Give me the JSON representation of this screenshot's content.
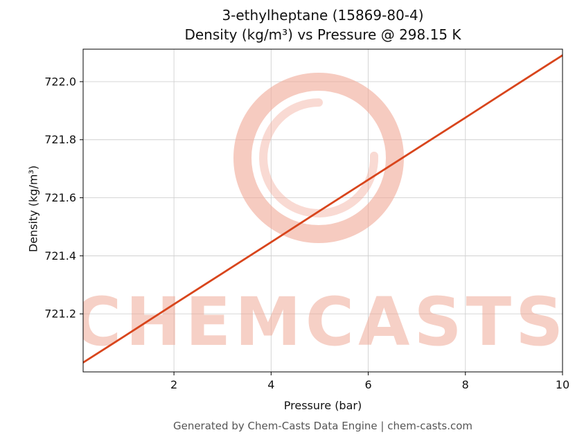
{
  "figure": {
    "title_line1": "3-ethylheptane (15869-80-4)",
    "title_line2": "Density (kg/m³) vs Pressure @ 298.15 K",
    "xlabel": "Pressure (bar)",
    "ylabel": "Density (kg/m³)",
    "footer": "Generated by Chem-Casts Data Engine | chem-casts.com",
    "watermark_text": "CHEMCASTS",
    "colors": {
      "line": "#d8451c",
      "watermark": "#f0a897",
      "grid": "#d0d0d0",
      "axis": "#000000",
      "tick_text": "#111111"
    }
  },
  "chart_data": {
    "type": "line",
    "title": "3-ethylheptane (15869-80-4) — Density (kg/m³) vs Pressure @ 298.15 K",
    "xlabel": "Pressure (bar)",
    "ylabel": "Density (kg/m³)",
    "x": [
      0.1,
      1,
      2,
      3,
      4,
      5,
      6,
      7,
      8,
      9,
      10
    ],
    "y": [
      721.029,
      721.125,
      721.233,
      721.34,
      721.447,
      721.555,
      721.662,
      721.769,
      721.876,
      721.984,
      722.091
    ],
    "xlim": [
      0.13,
      10
    ],
    "ylim": [
      721.0,
      722.112
    ],
    "xticks": [
      2,
      4,
      6,
      8,
      10
    ],
    "xtick_labels": [
      "2",
      "4",
      "6",
      "8",
      "10"
    ],
    "yticks": [
      721.2,
      721.4,
      721.6,
      721.8,
      722.0
    ],
    "ytick_labels": [
      "721.2",
      "721.4",
      "721.6",
      "721.8",
      "722.0"
    ],
    "grid": true,
    "legend": "none",
    "series_color": "#d8451c"
  }
}
